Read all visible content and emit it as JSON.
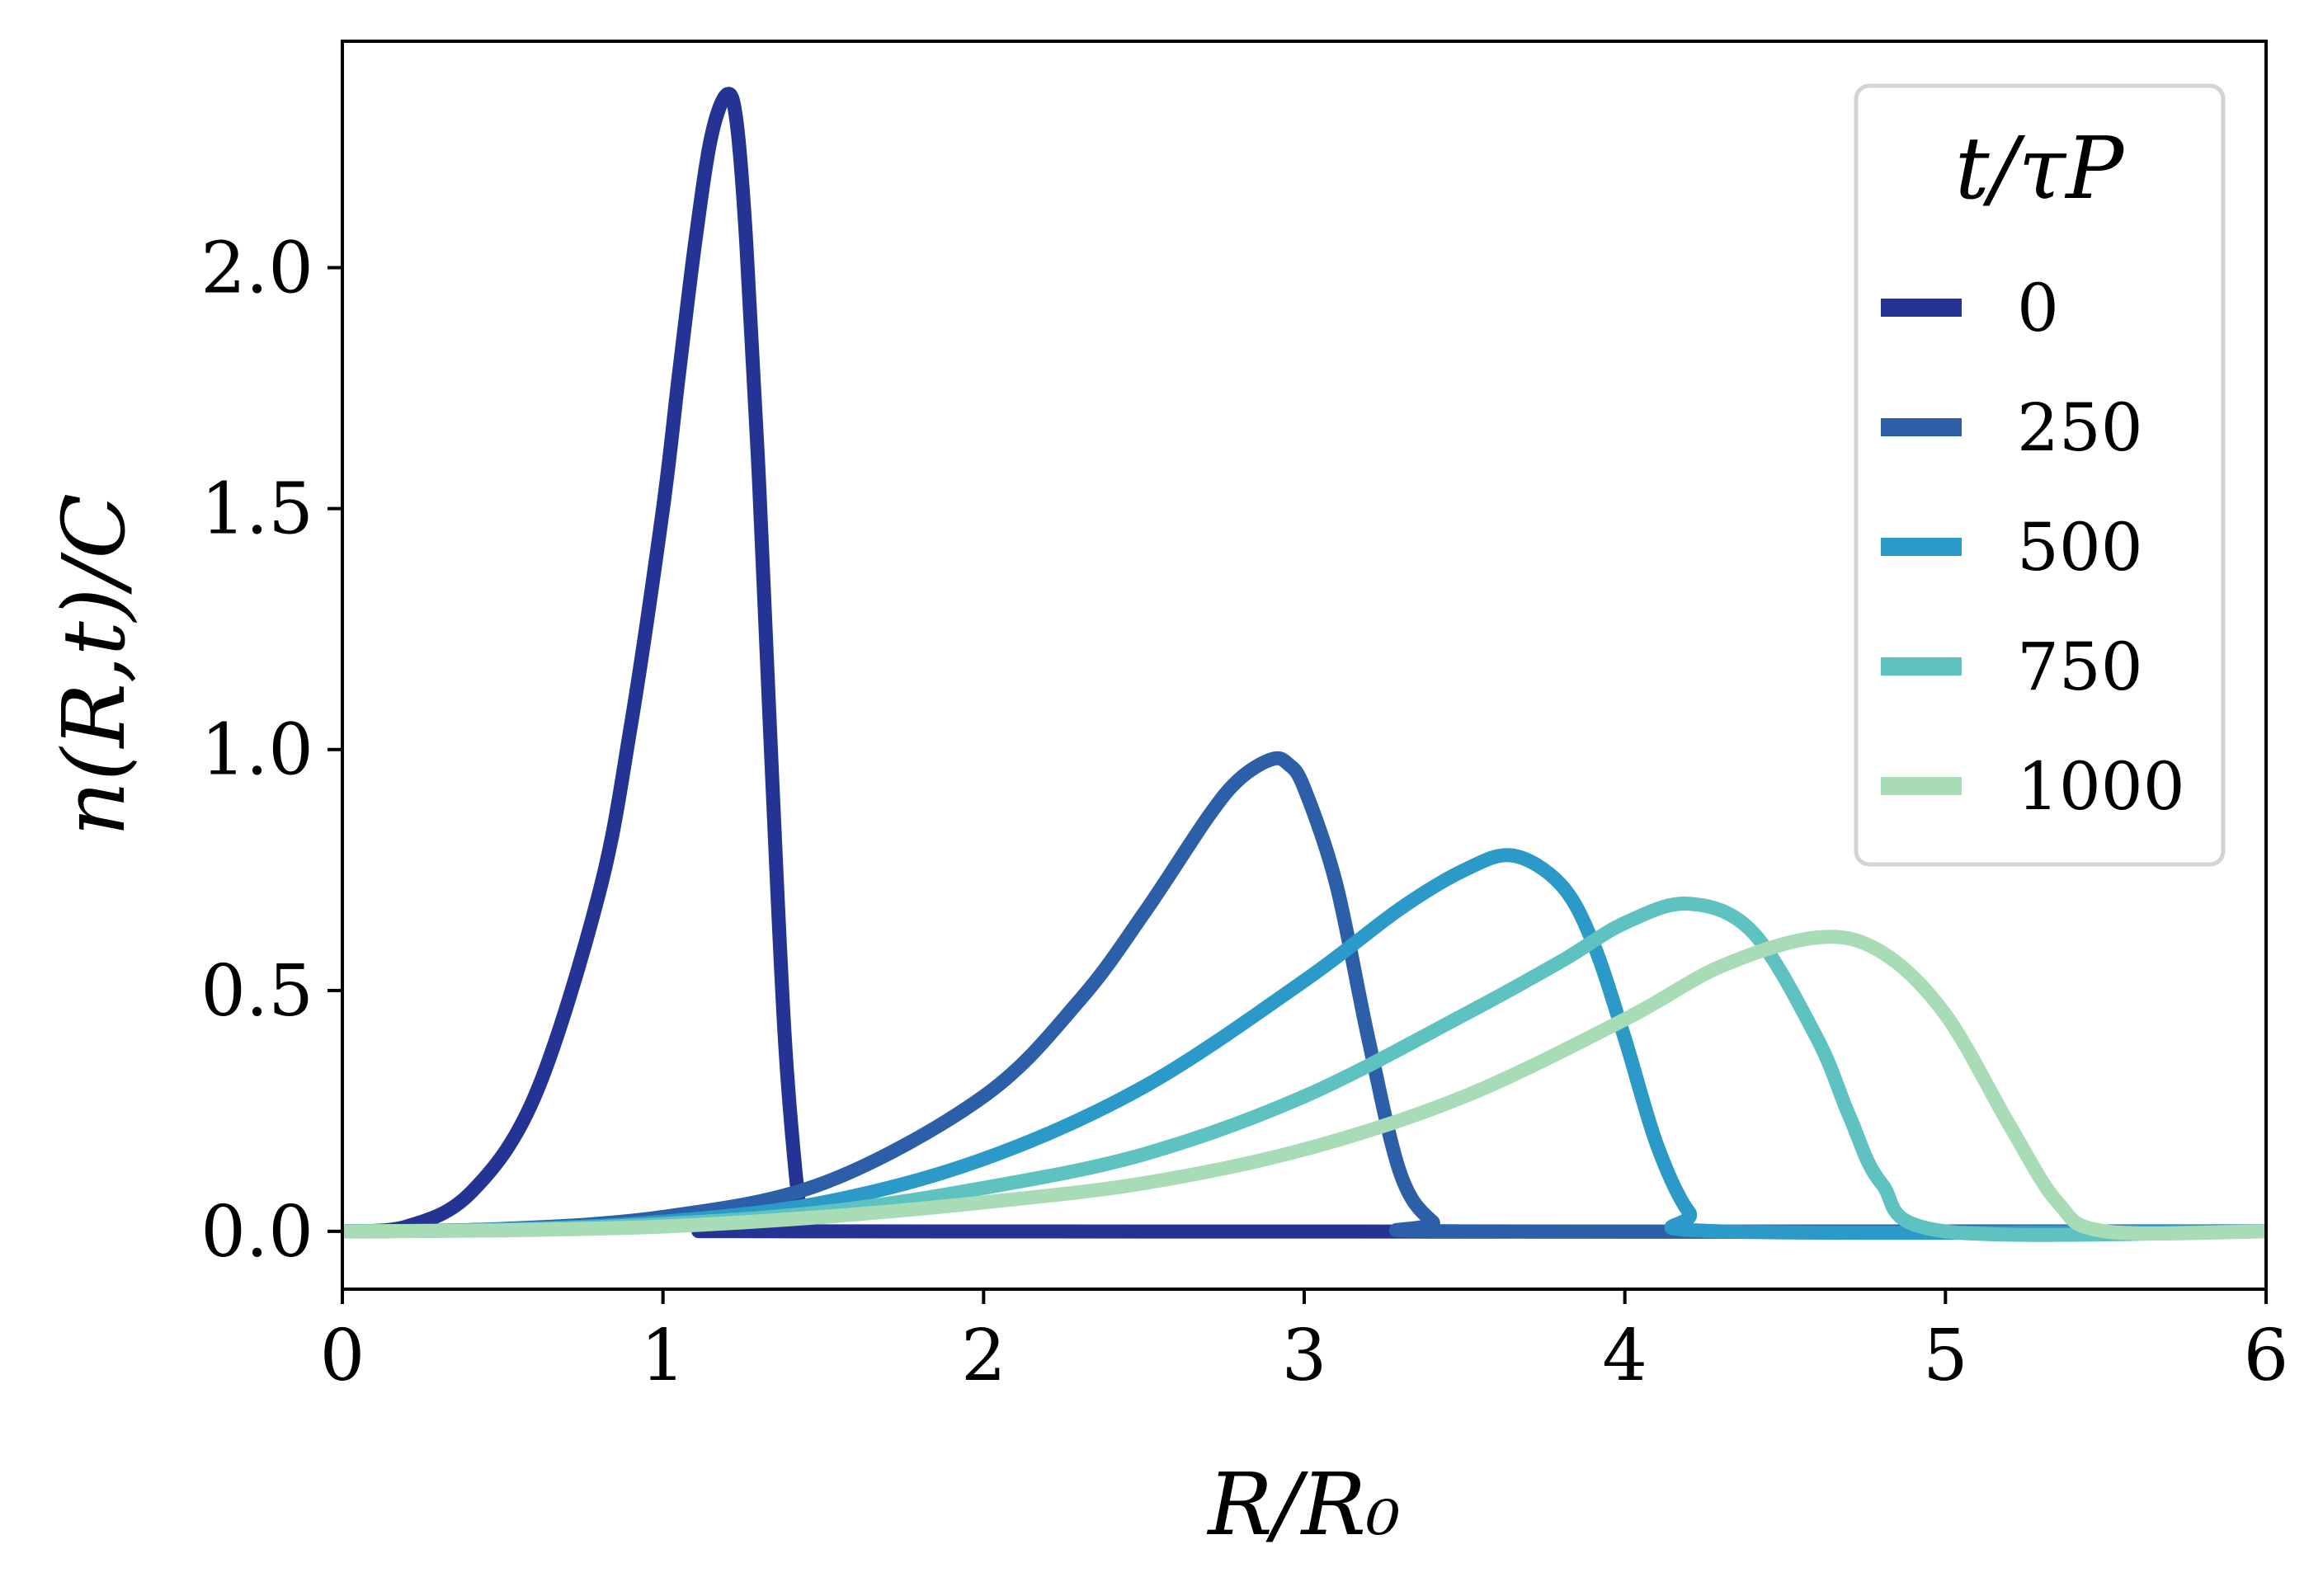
{
  "chart_data": {
    "type": "line",
    "xlabel": "R/R₀",
    "ylabel": "n(R,t)/C",
    "xlim": [
      0,
      6
    ],
    "ylim": [
      -0.12,
      2.47
    ],
    "xticks": [
      0,
      1,
      2,
      3,
      4,
      5,
      6
    ],
    "xtick_labels": [
      "0",
      "1",
      "2",
      "3",
      "4",
      "5",
      "6"
    ],
    "yticks": [
      0.0,
      0.5,
      1.0,
      1.5,
      2.0
    ],
    "ytick_labels": [
      "0.0",
      "0.5",
      "1.0",
      "1.5",
      "2.0"
    ],
    "grid": false,
    "legend": {
      "title": "t/τP",
      "placement": "top-right"
    },
    "series": [
      {
        "name": "0",
        "color": "#253494",
        "x": [
          0,
          0.2,
          0.4,
          0.6,
          0.8,
          0.9,
          1.0,
          1.05,
          1.1,
          1.15,
          1.2,
          1.23,
          1.26,
          1.3,
          1.34,
          1.38,
          1.42,
          1.44,
          1.45,
          6
        ],
        "y": [
          0,
          0.01,
          0.08,
          0.28,
          0.7,
          1.05,
          1.5,
          1.78,
          2.05,
          2.27,
          2.36,
          2.3,
          2.05,
          1.55,
          0.95,
          0.4,
          0.08,
          0.01,
          0,
          0
        ]
      },
      {
        "name": "250",
        "color": "#2c5fa8",
        "x": [
          0,
          0.5,
          1.0,
          1.5,
          2.0,
          2.3,
          2.5,
          2.7,
          2.8,
          2.9,
          2.95,
          3.0,
          3.1,
          3.2,
          3.3,
          3.4,
          3.5,
          6
        ],
        "y": [
          0,
          0.005,
          0.03,
          0.1,
          0.28,
          0.48,
          0.66,
          0.86,
          0.94,
          0.98,
          0.97,
          0.92,
          0.72,
          0.4,
          0.12,
          0.02,
          0,
          0
        ]
      },
      {
        "name": "500",
        "color": "#2b9ac8",
        "x": [
          0,
          0.5,
          1.0,
          1.5,
          2.0,
          2.5,
          3.0,
          3.3,
          3.5,
          3.65,
          3.8,
          3.9,
          4.0,
          4.1,
          4.2,
          4.3,
          6
        ],
        "y": [
          0,
          0.004,
          0.02,
          0.06,
          0.15,
          0.3,
          0.52,
          0.67,
          0.75,
          0.78,
          0.72,
          0.6,
          0.4,
          0.18,
          0.04,
          0,
          0
        ]
      },
      {
        "name": "750",
        "color": "#5ec2c0",
        "x": [
          0,
          0.5,
          1.0,
          1.5,
          2.0,
          2.5,
          3.0,
          3.5,
          3.8,
          4.0,
          4.2,
          4.4,
          4.6,
          4.7,
          4.8,
          5.0,
          6
        ],
        "y": [
          0,
          0.003,
          0.015,
          0.04,
          0.09,
          0.16,
          0.28,
          0.45,
          0.56,
          0.64,
          0.68,
          0.62,
          0.4,
          0.24,
          0.1,
          0,
          0
        ]
      },
      {
        "name": "1000",
        "color": "#a8dcb6",
        "x": [
          0,
          0.5,
          1.0,
          1.5,
          2.0,
          2.5,
          3.0,
          3.5,
          4.0,
          4.3,
          4.6,
          4.8,
          5.0,
          5.2,
          5.35,
          5.5,
          6
        ],
        "y": [
          0,
          0.002,
          0.01,
          0.03,
          0.06,
          0.1,
          0.17,
          0.28,
          0.44,
          0.55,
          0.61,
          0.58,
          0.45,
          0.22,
          0.06,
          0,
          0
        ]
      }
    ]
  }
}
